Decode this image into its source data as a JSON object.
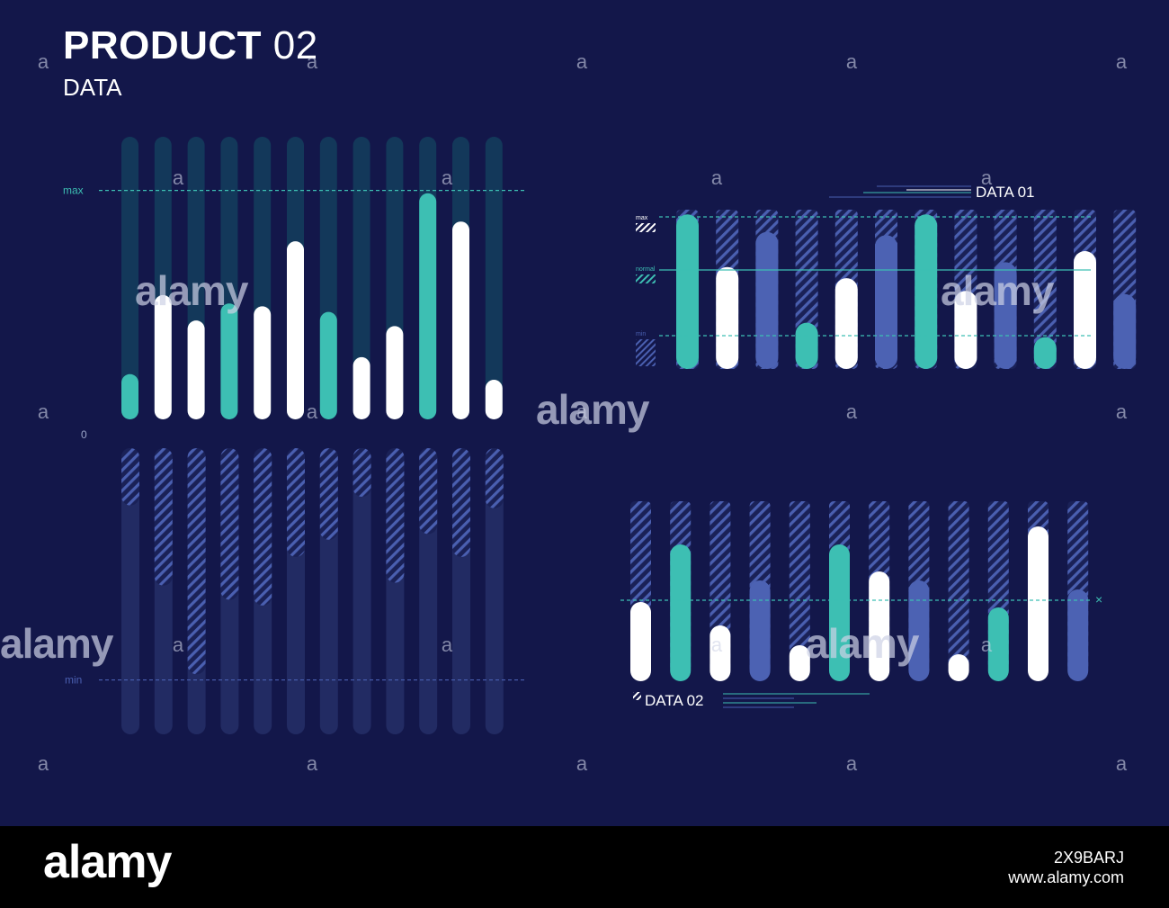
{
  "header": {
    "title_bold": "PRODUCT",
    "title_num": "02",
    "subtitle": "DATA"
  },
  "colors": {
    "background": "#13174a",
    "teal": "#3dbfb3",
    "white": "#ffffff",
    "blue": "#4c62b3",
    "track": "#13385a",
    "track_dim": "#222b63",
    "hatch": "#4a5fb0",
    "guide": "#3dbfb3"
  },
  "chart_data": [
    {
      "type": "bar",
      "name": "left-top",
      "labels": {
        "max": "max",
        "zero": "0"
      },
      "ylim": [
        0,
        100
      ],
      "max_level": 81,
      "values": [
        16,
        44,
        35,
        41,
        40,
        63,
        38,
        22,
        33,
        80,
        70,
        14
      ],
      "colors": [
        "teal",
        "white",
        "white",
        "teal",
        "white",
        "white",
        "teal",
        "white",
        "white",
        "teal",
        "white",
        "white"
      ]
    },
    {
      "type": "bar",
      "name": "left-bottom",
      "labels": {
        "min": "min"
      },
      "ylim": [
        0,
        100
      ],
      "min_level": 81,
      "values": [
        20,
        48,
        79,
        53,
        55,
        38,
        32,
        17,
        47,
        30,
        38,
        21
      ]
    },
    {
      "type": "bar",
      "name": "data-01",
      "title": "DATA 01",
      "labels": {
        "max": "max",
        "normal": "normal",
        "min": "min"
      },
      "ylim": [
        0,
        100
      ],
      "values": [
        97,
        64,
        86,
        29,
        57,
        84,
        97,
        49,
        67,
        20,
        74,
        47
      ],
      "colors": [
        "teal",
        "white",
        "blue",
        "teal",
        "white",
        "blue",
        "teal",
        "white",
        "blue",
        "teal",
        "white",
        "blue"
      ]
    },
    {
      "type": "bar",
      "name": "data-02",
      "title": "DATA 02",
      "labels": {
        "marker": "×"
      },
      "ylim": [
        0,
        100
      ],
      "values": [
        44,
        76,
        31,
        56,
        20,
        76,
        61,
        56,
        15,
        41,
        86,
        51
      ],
      "colors": [
        "white",
        "teal",
        "white",
        "blue",
        "white",
        "teal",
        "white",
        "blue",
        "white",
        "teal",
        "white",
        "blue"
      ]
    }
  ],
  "watermarks": {
    "brand": "alamy",
    "small_glyph": "a"
  },
  "footer": {
    "logo": "alamy",
    "image_id": "2X9BARJ",
    "site": "www.alamy.com"
  }
}
